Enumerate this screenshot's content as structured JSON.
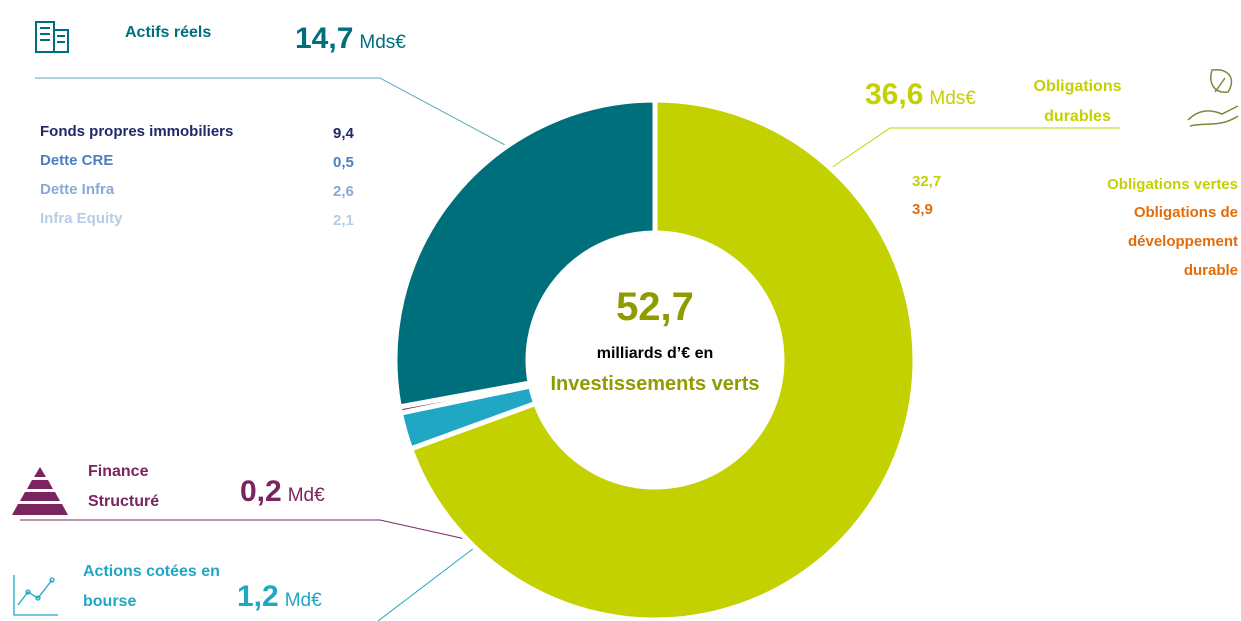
{
  "chart_data": {
    "type": "donut",
    "center": {
      "value_label": "52,7",
      "line1": "milliards d’€ en",
      "line2": "Investissements verts"
    },
    "categories": [
      "Obligations durables",
      "Actions cotées en bourse",
      "Finance Structuré",
      "Actifs réels"
    ],
    "values": [
      36.6,
      1.2,
      0.2,
      14.7
    ],
    "value_labels": [
      "36,6",
      "1,2",
      "0,2",
      "14,7"
    ],
    "units": [
      "Mds€",
      "Md€",
      "Md€",
      "Mds€"
    ],
    "colors": [
      "#c3d100",
      "#1fa7c4",
      "#7a2460",
      "#006f7c"
    ],
    "breakdowns": [
      {
        "names": [
          "Obligations vertes",
          "Obligations de développement durable"
        ],
        "values": [
          32.7,
          3.9
        ],
        "value_labels": [
          "32,7",
          "3,9"
        ],
        "colors": [
          "#c3d100",
          "#e36c0a"
        ]
      },
      null,
      null,
      {
        "names": [
          "Fonds propres immobiliers",
          "Dette CRE",
          "Dette Infra",
          "Infra Equity"
        ],
        "values": [
          9.4,
          0.5,
          2.6,
          2.1
        ],
        "value_labels": [
          "9,4",
          "0,5",
          "2,6",
          "2,1"
        ],
        "colors": [
          "#1f2a6b",
          "#4a7fc1",
          "#8aa9d6",
          "#b8cce6"
        ]
      }
    ]
  }
}
